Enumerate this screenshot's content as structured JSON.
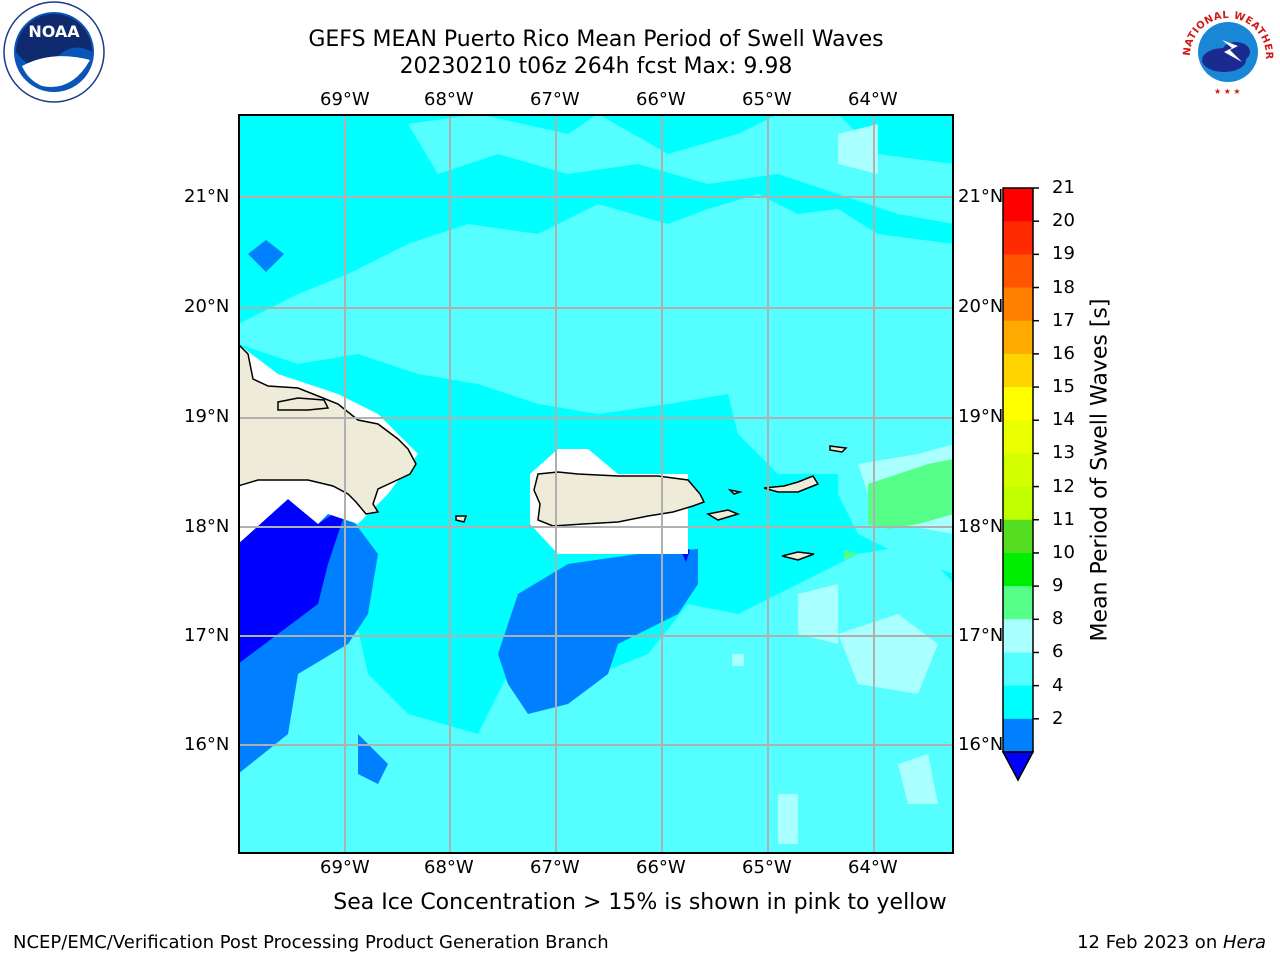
{
  "header": {
    "title_line1": "GEFS MEAN Puerto Rico Mean Period of Swell Waves",
    "title_line2": "20230210 t06z 264h fcst   Max: 9.98"
  },
  "logos": {
    "left": "noaa-logo",
    "right": "nws-logo",
    "left_text": "NOAA",
    "left_ring_text": "NATIONAL OCEANIC AND ATMOSPHERIC ADMINISTRATION · U.S. DEPARTMENT OF COMMERCE",
    "right_ring_text": "NATIONAL WEATHER SERVICE"
  },
  "map": {
    "lon_labels": [
      "69°W",
      "68°W",
      "67°W",
      "66°W",
      "65°W",
      "64°W"
    ],
    "lat_labels": [
      "21°N",
      "20°N",
      "19°N",
      "18°N",
      "17°N",
      "16°N"
    ],
    "land_color": "#eeecd9",
    "coast_color": "#000000",
    "grid_color": "#b0b0b0"
  },
  "colorbar": {
    "label": "Mean Period of Swell Waves [s]",
    "ticks": [
      "21",
      "20",
      "19",
      "18",
      "17",
      "16",
      "15",
      "14",
      "13",
      "12",
      "11",
      "10",
      "9",
      "8",
      "6",
      "4",
      "2"
    ],
    "colors_top_to_bottom": [
      "#ff0000",
      "#ff2a00",
      "#ff5500",
      "#ff8000",
      "#ffaa00",
      "#ffd400",
      "#ffff00",
      "#eaff00",
      "#d4ff00",
      "#bfff00",
      "#55dd22",
      "#00ee00",
      "#55ff88",
      "#aaffff",
      "#55ffff",
      "#00ffff",
      "#0080ff"
    ],
    "extend_color": "#0000ff"
  },
  "caption": "Sea Ice Concentration > 15% is shown in pink to yellow",
  "footer": {
    "left": "NCEP/EMC/Verification Post Processing Product Generation Branch",
    "date": "12 Feb 2023 on ",
    "host": "Hera"
  }
}
